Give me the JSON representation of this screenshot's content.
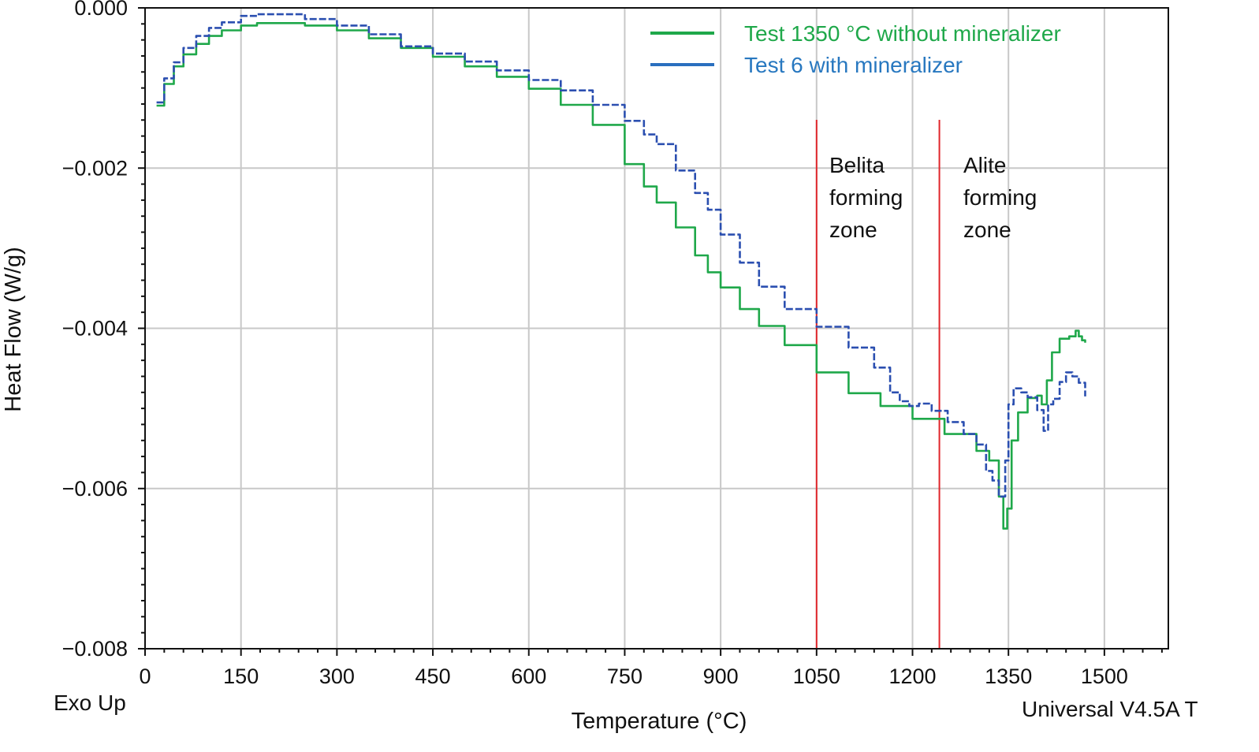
{
  "chart_data": {
    "type": "line",
    "xlabel": "Temperature (°C)",
    "ylabel": "Heat Flow (W/g)",
    "xlim": [
      0,
      1600
    ],
    "ylim": [
      -0.008,
      0.0
    ],
    "x_ticks": [
      0,
      150,
      300,
      450,
      600,
      750,
      900,
      1050,
      1200,
      1350,
      1500
    ],
    "x_tick_labels": [
      "0",
      "150",
      "300",
      "450",
      "600",
      "750",
      "900",
      "1050",
      "1200",
      "1350",
      "1500"
    ],
    "y_ticks": [
      0.0,
      -0.002,
      -0.004,
      -0.006,
      -0.008
    ],
    "y_tick_labels": [
      "0.000",
      "−0.002",
      "−0.004",
      "−0.006",
      "−0.008"
    ],
    "grid": true,
    "legend_position": "top-right",
    "corner_labels": {
      "left": "Exo Up",
      "right": "Universal V4.5A T"
    },
    "colors": {
      "series_green": "#1fa84a",
      "series_blue": "#2b4fb0",
      "legend_blue_text": "#2878c0",
      "zone_line": "#e0262b",
      "grid": "#c8c8c8"
    },
    "series": [
      {
        "name": "Test 1350 °C without mineralizer",
        "color": "#1fa84a",
        "style": "solid",
        "x": [
          18,
          30,
          45,
          60,
          80,
          100,
          120,
          150,
          175,
          200,
          250,
          300,
          350,
          400,
          450,
          500,
          550,
          600,
          650,
          700,
          750,
          780,
          800,
          830,
          860,
          880,
          900,
          930,
          960,
          1000,
          1050,
          1100,
          1150,
          1200,
          1250,
          1300,
          1320,
          1335,
          1342,
          1348,
          1355,
          1365,
          1380,
          1395,
          1402,
          1410,
          1418,
          1430,
          1445,
          1455,
          1460,
          1465,
          1470
        ],
        "y": [
          -0.00122,
          -0.00095,
          -0.00073,
          -0.00058,
          -0.00045,
          -0.00035,
          -0.00028,
          -0.00022,
          -0.00019,
          -0.00019,
          -0.00022,
          -0.00028,
          -0.00038,
          -0.0005,
          -0.00061,
          -0.00073,
          -0.00086,
          -0.00101,
          -0.00121,
          -0.00146,
          -0.00195,
          -0.00223,
          -0.00243,
          -0.00274,
          -0.00309,
          -0.0033,
          -0.00349,
          -0.00376,
          -0.00397,
          -0.00421,
          -0.00455,
          -0.00481,
          -0.00497,
          -0.00513,
          -0.00532,
          -0.00553,
          -0.00565,
          -0.0061,
          -0.0065,
          -0.00625,
          -0.0054,
          -0.00505,
          -0.00487,
          -0.00484,
          -0.00495,
          -0.00465,
          -0.0043,
          -0.00413,
          -0.0041,
          -0.00403,
          -0.0041,
          -0.00415,
          -0.00418
        ]
      },
      {
        "name": "Test 6 with mineralizer",
        "color": "#2b4fb0",
        "style": "dashed",
        "x": [
          18,
          30,
          45,
          60,
          80,
          100,
          120,
          150,
          175,
          200,
          250,
          300,
          350,
          400,
          450,
          500,
          550,
          600,
          650,
          700,
          750,
          780,
          800,
          830,
          860,
          880,
          900,
          930,
          960,
          1000,
          1050,
          1100,
          1140,
          1165,
          1180,
          1195,
          1210,
          1230,
          1255,
          1280,
          1300,
          1315,
          1325,
          1335,
          1345,
          1350,
          1358,
          1370,
          1380,
          1395,
          1405,
          1412,
          1420,
          1430,
          1440,
          1450,
          1460,
          1470
        ],
        "y": [
          -0.00118,
          -0.00088,
          -0.00068,
          -0.0005,
          -0.00035,
          -0.00025,
          -0.00018,
          -0.0001,
          -8e-05,
          -8e-05,
          -0.00014,
          -0.00022,
          -0.00033,
          -0.00048,
          -0.00057,
          -0.00067,
          -0.00078,
          -0.0009,
          -0.00103,
          -0.00121,
          -0.00141,
          -0.00158,
          -0.0017,
          -0.00203,
          -0.00231,
          -0.00252,
          -0.00283,
          -0.00318,
          -0.00348,
          -0.00376,
          -0.00398,
          -0.00424,
          -0.00449,
          -0.0048,
          -0.00491,
          -0.00497,
          -0.00494,
          -0.00503,
          -0.00517,
          -0.00532,
          -0.00545,
          -0.00578,
          -0.0059,
          -0.0061,
          -0.00565,
          -0.00495,
          -0.00475,
          -0.0048,
          -0.00486,
          -0.00502,
          -0.00528,
          -0.00495,
          -0.00488,
          -0.00467,
          -0.00455,
          -0.0046,
          -0.00468,
          -0.00485
        ]
      }
    ],
    "annotations": [
      {
        "x": 1050,
        "color": "#e0262b",
        "label_lines": [
          "Belita",
          "forming",
          "zone"
        ]
      },
      {
        "x": 1242,
        "color": "#e0262b",
        "label_lines": [
          "Alite",
          "forming",
          "zone"
        ]
      }
    ]
  }
}
